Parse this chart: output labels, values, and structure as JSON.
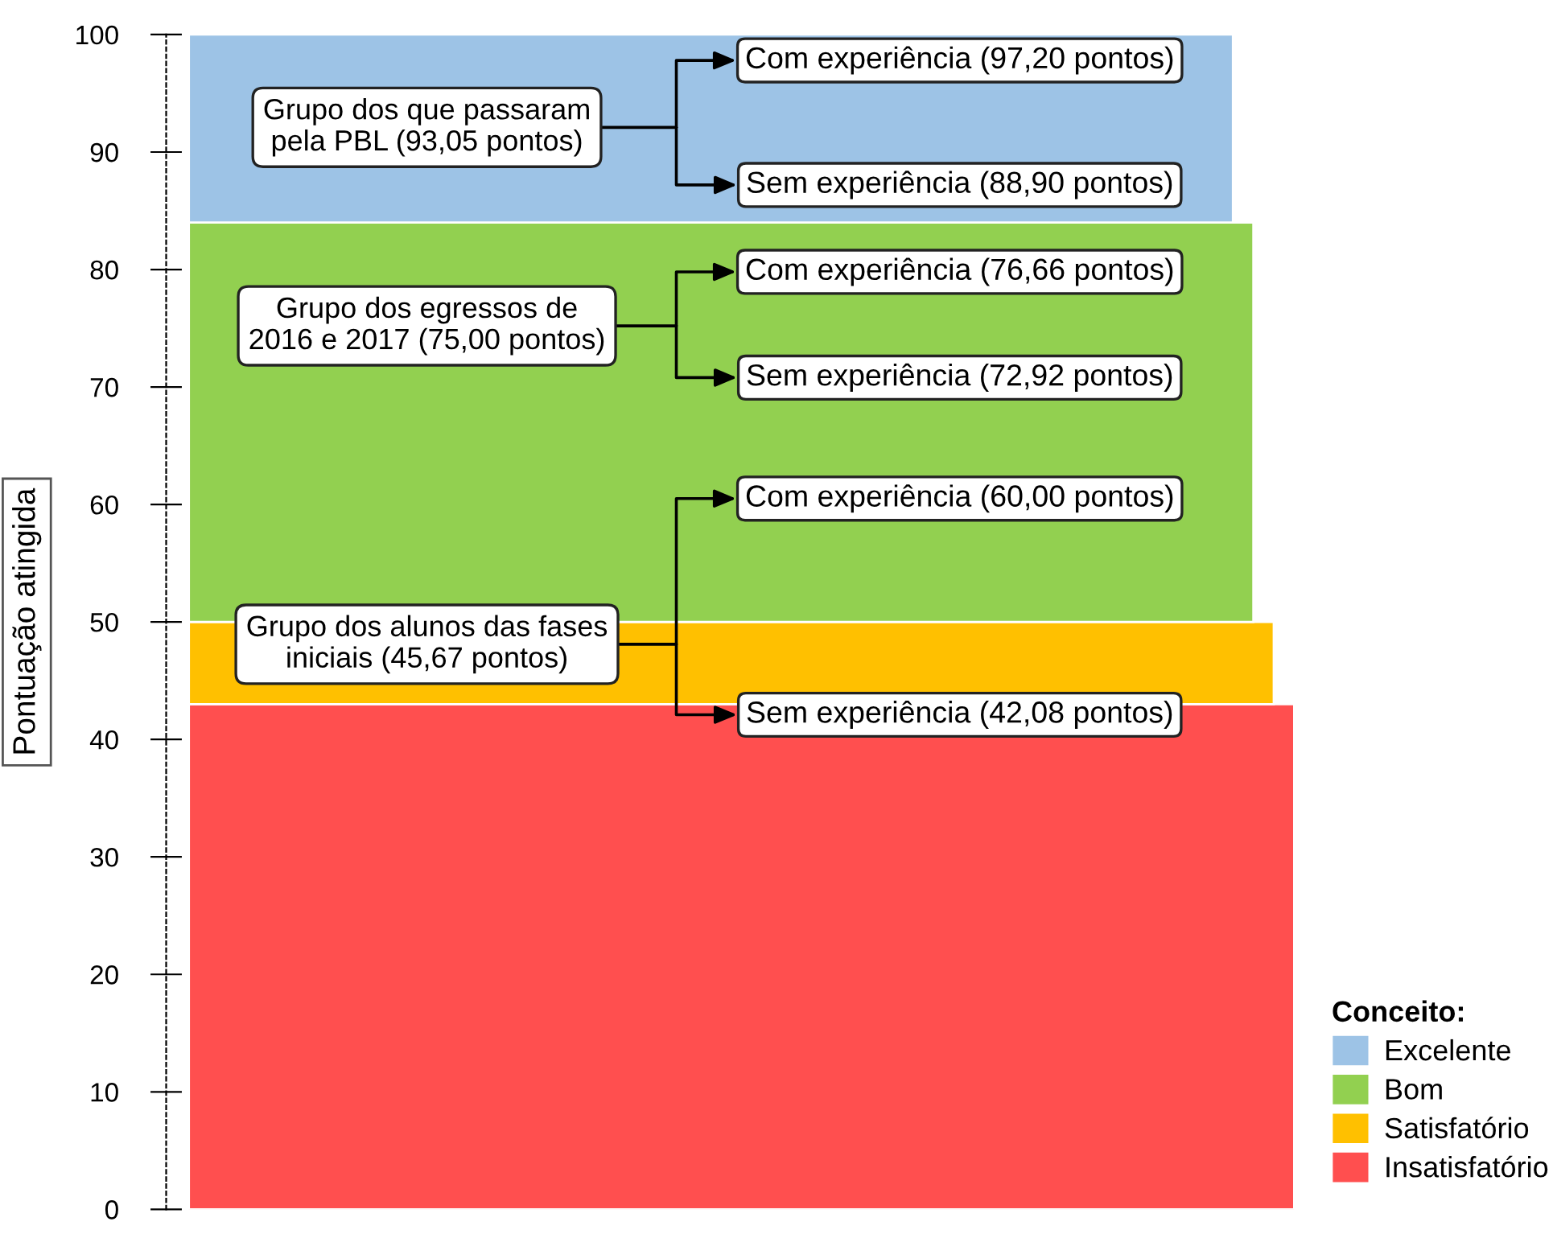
{
  "chart_data": {
    "type": "bar",
    "stacked": true,
    "categories": [
      null
    ],
    "series": [
      {
        "name": "Insatisfatório",
        "color": "#ff4f4f",
        "values": [
          43
        ]
      },
      {
        "name": "Satisfatório",
        "color": "#ffc000",
        "values": [
          7
        ]
      },
      {
        "name": "Bom",
        "color": "#92d050",
        "values": [
          34
        ]
      },
      {
        "name": "Excelente",
        "color": "#9dc3e6",
        "values": [
          16
        ]
      }
    ],
    "ylabel": "Pontuação atingida",
    "legend_title": "Conceito:",
    "legend": "bottom right",
    "ylim": [
      0,
      100
    ],
    "yticks": [
      0,
      10,
      20,
      30,
      40,
      50,
      60,
      70,
      80,
      90,
      100
    ],
    "grid": false,
    "annotations": [
      "Grupo dos que passaram\npela PBL (93,05 pontos)",
      "Com experiência (97,20 pontos)",
      "Sem experiência (88,90 pontos)",
      "Grupo dos egressos de\n2016 e 2017 (75,00 pontos)",
      "Com experiência (76,66 pontos)",
      "Sem experiência (72,92 pontos)",
      "Grupo dos alunos das fases\niniciais (45,67 pontos)",
      "Com experiência (60,00 pontos)",
      "Sem experiência (42,08 pontos)"
    ]
  }
}
